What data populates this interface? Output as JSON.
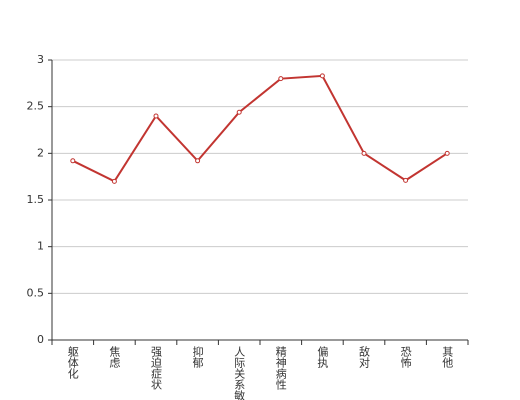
{
  "chart_data": {
    "type": "line",
    "categories": [
      "躯体化",
      "焦虑",
      "强迫症状",
      "抑郁",
      "人际关系敏感",
      "精神病性",
      "偏执",
      "敌对",
      "恐怖",
      "其他"
    ],
    "series": [
      {
        "color": "#c23531",
        "values": [
          1.92,
          1.7,
          2.4,
          1.92,
          2.44,
          2.8,
          2.83,
          2.0,
          1.71,
          2.0
        ]
      }
    ],
    "ylim": [
      0,
      3
    ],
    "yticks": [
      0,
      0.5,
      1,
      1.5,
      2,
      2.5,
      3
    ],
    "grid": true
  }
}
